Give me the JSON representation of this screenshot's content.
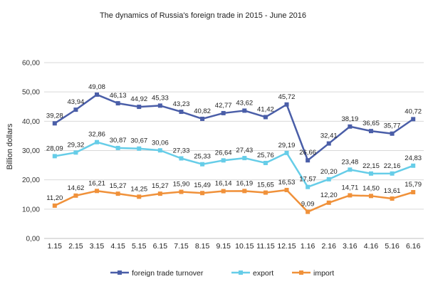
{
  "chart_data": {
    "type": "line",
    "title": "The dynamics  of Russia's foreign trade in 2015 - June 2016",
    "xlabel": "",
    "ylabel": "Billion dollars",
    "ylim": [
      0,
      60
    ],
    "yticks": [
      "0,00",
      "10,00",
      "20,00",
      "30,00",
      "40,00",
      "50,00",
      "60,00"
    ],
    "ytick_values": [
      0,
      10,
      20,
      30,
      40,
      50,
      60
    ],
    "categories": [
      "1.15",
      "2.15",
      "3.15",
      "4.15",
      "5.15",
      "6.15",
      "7.15",
      "8.15",
      "9.15",
      "10.15",
      "11.15",
      "12.15",
      "1.16",
      "2.16",
      "3.16",
      "4.16",
      "5.16",
      "6.16"
    ],
    "grid": true,
    "legend_position": "bottom",
    "series": [
      {
        "name": "foreign trade turnover",
        "color": "#4a5ea8",
        "values": [
          39.28,
          43.94,
          49.08,
          46.13,
          44.92,
          45.33,
          43.23,
          40.82,
          42.77,
          43.62,
          41.42,
          45.72,
          26.66,
          32.41,
          38.19,
          36.65,
          35.77,
          40.72
        ],
        "labels": [
          "39,28",
          "43,94",
          "49,08",
          "46,13",
          "44,92",
          "45,33",
          "43,23",
          "40,82",
          "42,77",
          "43,62",
          "41,42",
          "45,72",
          "26,66",
          "32,41",
          "38,19",
          "36,65",
          "35,77",
          "40,72"
        ]
      },
      {
        "name": "export",
        "color": "#66cde8",
        "values": [
          28.09,
          29.32,
          32.86,
          30.87,
          30.67,
          30.06,
          27.33,
          25.33,
          26.64,
          27.43,
          25.76,
          29.19,
          17.57,
          20.2,
          23.48,
          22.15,
          22.16,
          24.83
        ],
        "labels": [
          "28,09",
          "29,32",
          "32,86",
          "30,87",
          "30,67",
          "30,06",
          "27,33",
          "25,33",
          "26,64",
          "27,43",
          "25,76",
          "29,19",
          "17,57",
          "20,20",
          "23,48",
          "22,15",
          "22,16",
          "24,83"
        ]
      },
      {
        "name": "import",
        "color": "#f0913a",
        "values": [
          11.2,
          14.62,
          16.21,
          15.27,
          14.25,
          15.27,
          15.9,
          15.49,
          16.14,
          16.19,
          15.65,
          16.53,
          9.09,
          12.2,
          14.71,
          14.5,
          13.61,
          15.79
        ],
        "labels": [
          "11,20",
          "14,62",
          "16,21",
          "15,27",
          "14,25",
          "15,27",
          "15,90",
          "15,49",
          "16,14",
          "16,19",
          "15,65",
          "16,53",
          "9,09",
          "12,20",
          "14,71",
          "14,50",
          "13,61",
          "15,79"
        ]
      }
    ]
  }
}
